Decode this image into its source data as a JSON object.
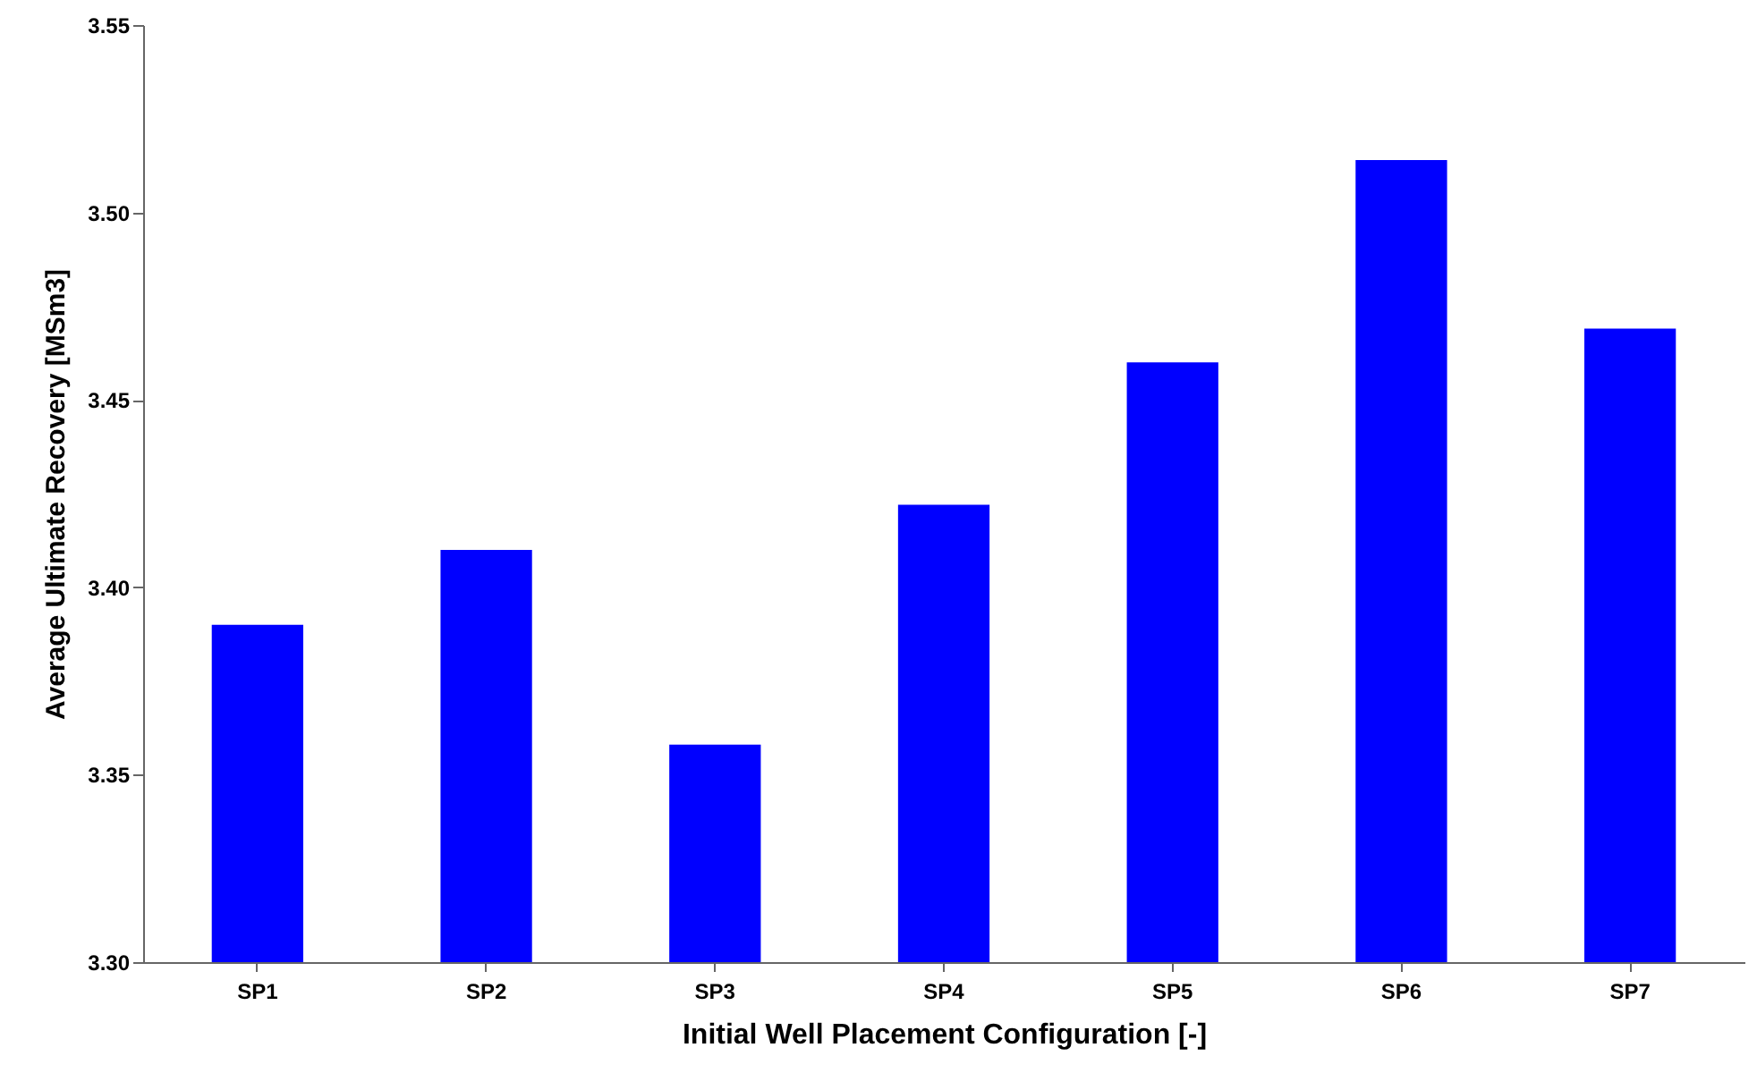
{
  "chart_data": {
    "type": "bar",
    "xlabel": "Initial Well Placement Configuration [-]",
    "ylabel": "Average Ultimate Recovery [MSm3]",
    "categories": [
      "SP1",
      "SP2",
      "SP3",
      "SP4",
      "SP5",
      "SP6",
      "SP7"
    ],
    "values": [
      3.39,
      3.41,
      3.358,
      3.422,
      3.46,
      3.514,
      3.469
    ],
    "color": "#0000ff",
    "ylim": [
      3.3,
      3.55
    ],
    "yticks": [
      {
        "value": 3.3,
        "label": "3.30"
      },
      {
        "value": 3.35,
        "label": "3.35"
      },
      {
        "value": 3.4,
        "label": "3.40"
      },
      {
        "value": 3.45,
        "label": "3.45"
      },
      {
        "value": 3.5,
        "label": "3.50"
      },
      {
        "value": 3.55,
        "label": "3.55"
      }
    ],
    "grid": false
  }
}
